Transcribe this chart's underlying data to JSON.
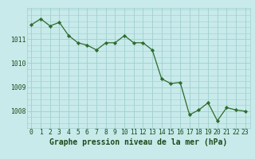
{
  "x": [
    0,
    1,
    2,
    3,
    4,
    5,
    6,
    7,
    8,
    9,
    10,
    11,
    12,
    13,
    14,
    15,
    16,
    17,
    18,
    19,
    20,
    21,
    22,
    23
  ],
  "y": [
    1011.6,
    1011.85,
    1011.55,
    1011.7,
    1011.15,
    1010.85,
    1010.75,
    1010.55,
    1010.85,
    1010.85,
    1011.15,
    1010.85,
    1010.85,
    1010.55,
    1009.35,
    1009.15,
    1009.2,
    1007.85,
    1008.05,
    1008.35,
    1007.6,
    1008.15,
    1008.05,
    1008.0
  ],
  "line_color": "#2d6b2d",
  "marker_color": "#2d6b2d",
  "bg_color": "#c8eaea",
  "grid_color": "#a0cfcf",
  "xlabel": "Graphe pression niveau de la mer (hPa)",
  "xlabel_color": "#1a4a1a",
  "ylim": [
    1007.3,
    1012.3
  ],
  "yticks": [
    1008,
    1009,
    1010,
    1011
  ],
  "xticks": [
    0,
    1,
    2,
    3,
    4,
    5,
    6,
    7,
    8,
    9,
    10,
    11,
    12,
    13,
    14,
    15,
    16,
    17,
    18,
    19,
    20,
    21,
    22,
    23
  ],
  "tick_color": "#1a4a1a",
  "tick_fontsize": 5.8,
  "xlabel_fontsize": 7.0
}
